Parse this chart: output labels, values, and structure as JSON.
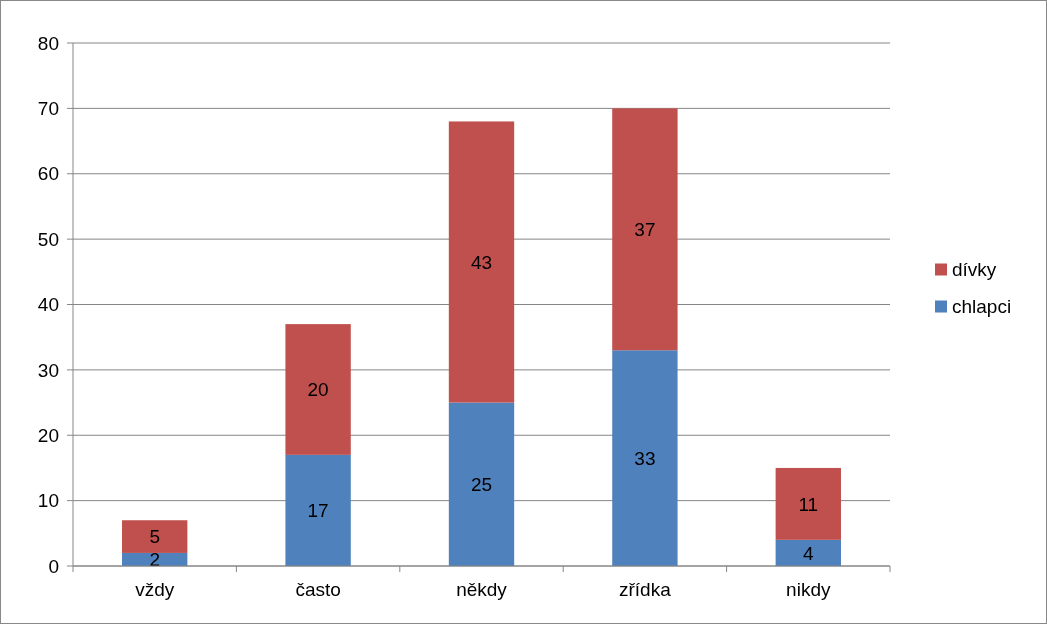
{
  "chart_data": {
    "type": "bar",
    "stacked": true,
    "categories": [
      "vždy",
      "často",
      "někdy",
      "zřídka",
      "nikdy"
    ],
    "series": [
      {
        "name": "chlapci",
        "color": "#4f81bd",
        "values": [
          2,
          17,
          25,
          33,
          4
        ]
      },
      {
        "name": "dívky",
        "color": "#c0504d",
        "values": [
          5,
          20,
          43,
          37,
          11
        ]
      }
    ],
    "ylim": [
      0,
      80
    ],
    "yticks": [
      0,
      10,
      20,
      30,
      40,
      50,
      60,
      70,
      80
    ],
    "grid": "y",
    "legend": "right",
    "data_labels": true
  }
}
